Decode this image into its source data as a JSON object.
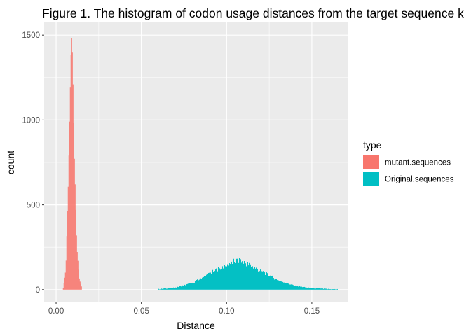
{
  "chart_data": {
    "type": "histogram",
    "title": "Figure 1. The histogram of codon usage distances from the target sequence k",
    "xlabel": "Distance",
    "ylabel": "count",
    "xlim": [
      -0.007,
      0.171
    ],
    "ylim": [
      -75,
      1575
    ],
    "x_ticks": [
      0.0,
      0.05,
      0.1,
      0.15
    ],
    "x_tick_labels": [
      "0.00",
      "0.05",
      "0.10",
      "0.15"
    ],
    "y_ticks": [
      0,
      500,
      1000,
      1500
    ],
    "y_tick_labels": [
      "0",
      "500",
      "1000",
      "1500"
    ],
    "grid": true,
    "legend": {
      "title": "type",
      "position": "right"
    },
    "series": [
      {
        "name": "mutant.sequences",
        "color": "#F8766D",
        "distribution": {
          "center": 0.009,
          "peak_count": 1500,
          "min": 0.004,
          "max": 0.015
        },
        "points": [
          [
            0.004,
            10
          ],
          [
            0.0055,
            120
          ],
          [
            0.007,
            650
          ],
          [
            0.0085,
            1380
          ],
          [
            0.009,
            1500
          ],
          [
            0.0095,
            1350
          ],
          [
            0.0105,
            800
          ],
          [
            0.012,
            250
          ],
          [
            0.0135,
            60
          ],
          [
            0.015,
            8
          ]
        ]
      },
      {
        "name": "Original.sequences",
        "color": "#00BFC4",
        "distribution": {
          "center": 0.106,
          "peak_count": 170,
          "min": 0.06,
          "max": 0.165
        },
        "points": [
          [
            0.06,
            3
          ],
          [
            0.07,
            12
          ],
          [
            0.08,
            40
          ],
          [
            0.09,
            95
          ],
          [
            0.1,
            150
          ],
          [
            0.106,
            170
          ],
          [
            0.11,
            160
          ],
          [
            0.12,
            110
          ],
          [
            0.13,
            55
          ],
          [
            0.14,
            22
          ],
          [
            0.15,
            8
          ],
          [
            0.16,
            3
          ],
          [
            0.165,
            2
          ]
        ]
      }
    ]
  }
}
